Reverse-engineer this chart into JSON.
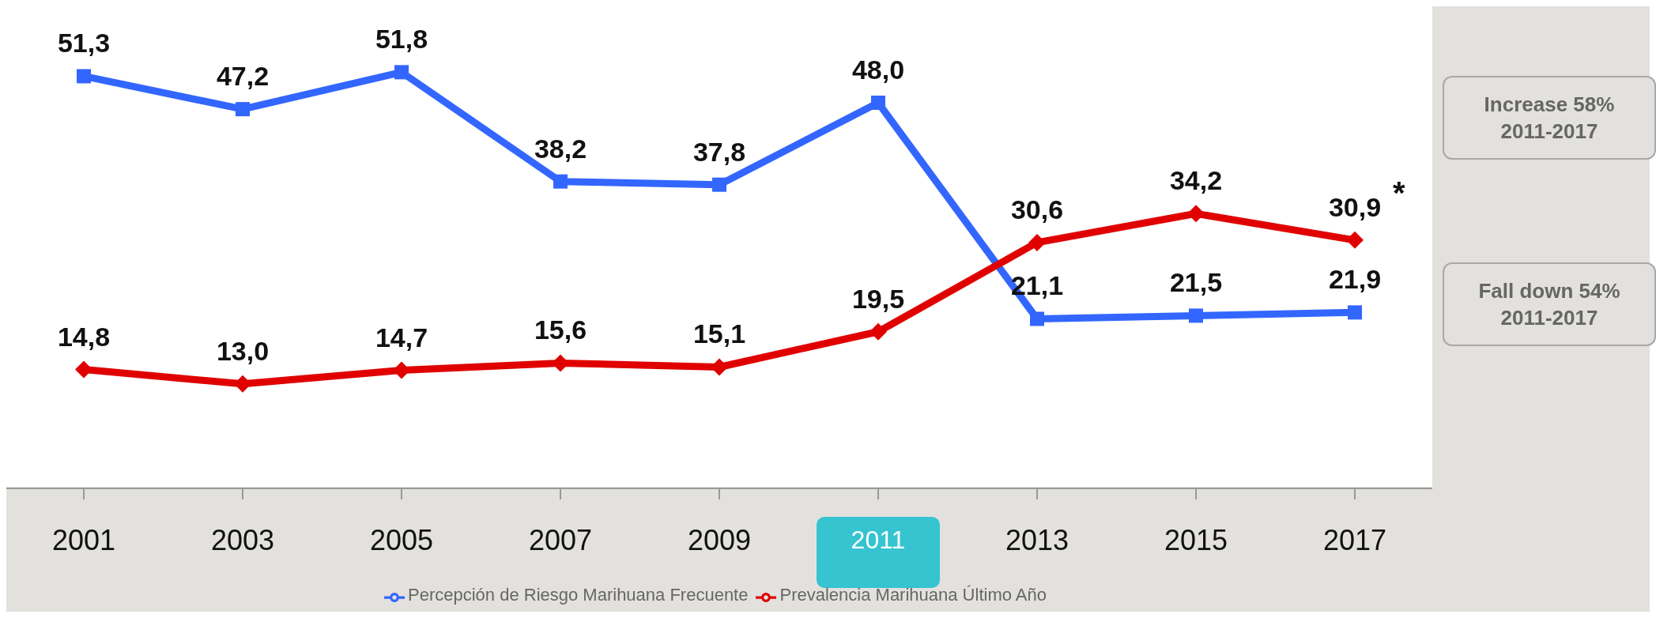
{
  "chart_data": {
    "type": "line",
    "categories": [
      "2001",
      "2003",
      "2005",
      "2007",
      "2009",
      "2011",
      "2013",
      "2015",
      "2017"
    ],
    "series": [
      {
        "name": "Percepción de Riesgo Marihuana Frecuente",
        "color": "#3366ff",
        "marker": "square",
        "values": [
          51.3,
          47.2,
          51.8,
          38.2,
          37.8,
          48.0,
          21.1,
          21.5,
          21.9
        ],
        "value_labels": [
          "51,3",
          "47,2",
          "51,8",
          "38,2",
          "37,8",
          "48,0",
          "21,1",
          "21,5",
          "21,9"
        ]
      },
      {
        "name": "Prevalencia Marihuana Último Año",
        "color": "#e00000",
        "marker": "diamond",
        "values": [
          14.8,
          13.0,
          14.7,
          15.6,
          15.1,
          19.5,
          30.6,
          34.2,
          30.9
        ],
        "value_labels": [
          "14,8",
          "13,0",
          "14,7",
          "15,6",
          "15,1",
          "19,5",
          "30,6",
          "34,2",
          "30,9"
        ]
      }
    ],
    "annotations": [
      {
        "text": "*",
        "x": "2017",
        "y": 30.9
      },
      "Increase 58%\n2011-2017",
      "Fall down 54%\n2011-2017"
    ],
    "legend": "bottom",
    "line_style": "solid"
  }
}
